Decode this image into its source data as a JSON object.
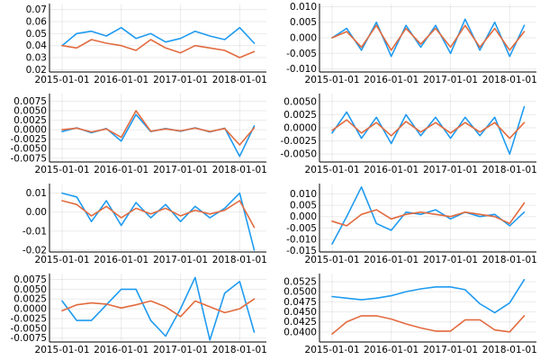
{
  "colors": {
    "series1": "#1f9bf0",
    "series2": "#e26b3f"
  },
  "chart_data": [
    {
      "type": "line",
      "panel": "top-left",
      "x_tick_labels": [
        "2015-01-01",
        "2016-01-01",
        "2017-01-01",
        "2018-01-01"
      ],
      "xlim": [
        "2014-10-15",
        "2018-06-15"
      ],
      "ylim": [
        0.018,
        0.075
      ],
      "y_ticks": [
        0.02,
        0.03,
        0.04,
        0.05,
        0.06,
        0.07
      ],
      "y_tick_labels": [
        "0.02",
        "0.03",
        "0.04",
        "0.05",
        "0.06",
        "0.07"
      ],
      "grid": true,
      "legend": "none",
      "x": [
        "2015-01-01",
        "2015-04-01",
        "2015-07-01",
        "2015-10-01",
        "2016-01-01",
        "2016-04-01",
        "2016-07-01",
        "2016-10-01",
        "2017-01-01",
        "2017-04-01",
        "2017-07-01",
        "2017-10-01",
        "2018-01-01",
        "2018-04-01"
      ],
      "series": [
        {
          "values": [
            0.04,
            0.05,
            0.052,
            0.048,
            0.055,
            0.046,
            0.05,
            0.043,
            0.046,
            0.052,
            0.048,
            0.045,
            0.055,
            0.042
          ]
        },
        {
          "values": [
            0.04,
            0.038,
            0.045,
            0.042,
            0.04,
            0.036,
            0.045,
            0.038,
            0.034,
            0.04,
            0.038,
            0.036,
            0.03,
            0.035
          ]
        }
      ]
    },
    {
      "type": "line",
      "panel": "top-right",
      "x_tick_labels": [
        "2015-01-01",
        "2016-01-01",
        "2017-01-01",
        "2018-01-01"
      ],
      "xlim": [
        "2014-10-15",
        "2018-06-15"
      ],
      "ylim": [
        -0.011,
        0.011
      ],
      "y_ticks": [
        -0.01,
        -0.005,
        0.0,
        0.005,
        0.01
      ],
      "y_tick_labels": [
        "-0.010",
        "-0.005",
        "0.000",
        "0.005",
        "0.010"
      ],
      "grid": true,
      "legend": "none",
      "x": [
        "2015-01-01",
        "2015-04-01",
        "2015-07-01",
        "2015-10-01",
        "2016-01-01",
        "2016-04-01",
        "2016-07-01",
        "2016-10-01",
        "2017-01-01",
        "2017-04-01",
        "2017-07-01",
        "2017-10-01",
        "2018-01-01",
        "2018-04-01"
      ],
      "series": [
        {
          "values": [
            0.0,
            0.003,
            -0.004,
            0.005,
            -0.006,
            0.004,
            -0.003,
            0.004,
            -0.005,
            0.006,
            -0.004,
            0.005,
            -0.006,
            0.004
          ]
        },
        {
          "values": [
            0.0,
            0.002,
            -0.003,
            0.004,
            -0.004,
            0.003,
            -0.002,
            0.003,
            -0.003,
            0.004,
            -0.003,
            0.003,
            -0.004,
            0.002
          ]
        }
      ]
    },
    {
      "type": "line",
      "panel": "second-left",
      "x_tick_labels": [
        "2015-01-01",
        "2016-01-01",
        "2017-01-01",
        "2018-01-01"
      ],
      "xlim": [
        "2014-10-15",
        "2018-06-15"
      ],
      "ylim": [
        -0.0085,
        0.0095
      ],
      "y_ticks": [
        -0.0075,
        -0.005,
        -0.0025,
        0.0,
        0.0025,
        0.005,
        0.0075
      ],
      "y_tick_labels": [
        "-0.0075",
        "-0.0050",
        "-0.0025",
        "0.0000",
        "0.0025",
        "0.0050",
        "0.0075"
      ],
      "grid": true,
      "legend": "none",
      "x": [
        "2015-01-01",
        "2015-04-01",
        "2015-07-01",
        "2015-10-01",
        "2016-01-01",
        "2016-04-01",
        "2016-07-01",
        "2016-10-01",
        "2017-01-01",
        "2017-04-01",
        "2017-07-01",
        "2017-10-01",
        "2018-01-01",
        "2018-04-01"
      ],
      "series": [
        {
          "values": [
            -0.0005,
            0.0005,
            -0.0008,
            0.0003,
            -0.003,
            0.004,
            -0.0005,
            0.0003,
            -0.0004,
            0.0005,
            -0.0006,
            0.0004,
            -0.007,
            0.001
          ]
        },
        {
          "values": [
            0.0,
            0.0004,
            -0.0006,
            0.0002,
            -0.002,
            0.005,
            -0.0004,
            0.0002,
            -0.0003,
            0.0004,
            -0.0005,
            0.0003,
            -0.004,
            0.0005
          ]
        }
      ]
    },
    {
      "type": "line",
      "panel": "second-right",
      "x_tick_labels": [
        "2015-01-01",
        "2016-01-01",
        "2017-01-01",
        "2018-01-01"
      ],
      "xlim": [
        "2014-10-15",
        "2018-06-15"
      ],
      "ylim": [
        -0.0065,
        0.0065
      ],
      "y_ticks": [
        -0.005,
        -0.0025,
        0.0,
        0.0025,
        0.005
      ],
      "y_tick_labels": [
        "-0.0050",
        "-0.0025",
        "0.0000",
        "0.0025",
        "0.0050"
      ],
      "grid": true,
      "legend": "none",
      "x": [
        "2015-01-01",
        "2015-04-01",
        "2015-07-01",
        "2015-10-01",
        "2016-01-01",
        "2016-04-01",
        "2016-07-01",
        "2016-10-01",
        "2017-01-01",
        "2017-04-01",
        "2017-07-01",
        "2017-10-01",
        "2018-01-01",
        "2018-04-01"
      ],
      "series": [
        {
          "values": [
            -0.001,
            0.003,
            -0.002,
            0.002,
            -0.003,
            0.0025,
            -0.0015,
            0.002,
            -0.002,
            0.002,
            -0.0015,
            0.002,
            -0.005,
            0.004
          ]
        },
        {
          "values": [
            -0.0005,
            0.0015,
            -0.001,
            0.001,
            -0.0015,
            0.0012,
            -0.0008,
            0.001,
            -0.001,
            0.001,
            -0.0008,
            0.001,
            -0.002,
            0.001
          ]
        }
      ]
    },
    {
      "type": "line",
      "panel": "third-left",
      "x_tick_labels": [
        "2015-01-01",
        "2016-01-01",
        "2017-01-01",
        "2018-01-01"
      ],
      "xlim": [
        "2014-10-15",
        "2018-06-15"
      ],
      "ylim": [
        -0.021,
        0.015
      ],
      "y_ticks": [
        -0.02,
        -0.01,
        0.0,
        0.01
      ],
      "y_tick_labels": [
        "-0.02",
        "-0.01",
        "0.00",
        "0.01"
      ],
      "grid": true,
      "legend": "none",
      "x": [
        "2015-01-01",
        "2015-04-01",
        "2015-07-01",
        "2015-10-01",
        "2016-01-01",
        "2016-04-01",
        "2016-07-01",
        "2016-10-01",
        "2017-01-01",
        "2017-04-01",
        "2017-07-01",
        "2017-10-01",
        "2018-01-01",
        "2018-04-01"
      ],
      "series": [
        {
          "values": [
            0.01,
            0.008,
            -0.005,
            0.006,
            -0.007,
            0.005,
            -0.003,
            0.004,
            -0.005,
            0.003,
            -0.003,
            0.002,
            0.01,
            -0.02
          ]
        },
        {
          "values": [
            0.006,
            0.004,
            -0.002,
            0.003,
            -0.003,
            0.002,
            -0.001,
            0.002,
            -0.002,
            0.001,
            -0.001,
            0.001,
            0.006,
            -0.008
          ]
        }
      ]
    },
    {
      "type": "line",
      "panel": "third-right",
      "x_tick_labels": [
        "2015-01-01",
        "2016-01-01",
        "2017-01-01",
        "2018-01-01"
      ],
      "xlim": [
        "2014-10-15",
        "2018-06-15"
      ],
      "ylim": [
        -0.0155,
        0.0145
      ],
      "y_ticks": [
        -0.015,
        -0.01,
        -0.005,
        0.0,
        0.005,
        0.01
      ],
      "y_tick_labels": [
        "-0.015",
        "-0.010",
        "-0.005",
        "0.000",
        "0.005",
        "0.010"
      ],
      "grid": true,
      "legend": "none",
      "x": [
        "2015-01-01",
        "2015-04-01",
        "2015-07-01",
        "2015-10-01",
        "2016-01-01",
        "2016-04-01",
        "2016-07-01",
        "2016-10-01",
        "2017-01-01",
        "2017-04-01",
        "2017-07-01",
        "2017-10-01",
        "2018-01-01",
        "2018-04-01"
      ],
      "series": [
        {
          "values": [
            -0.012,
            0.0,
            0.013,
            -0.003,
            -0.006,
            0.002,
            0.001,
            0.003,
            -0.001,
            0.002,
            0.0,
            0.001,
            -0.004,
            0.002
          ]
        },
        {
          "values": [
            -0.002,
            -0.004,
            0.001,
            0.003,
            -0.001,
            0.001,
            0.002,
            0.001,
            0.0,
            0.002,
            0.001,
            0.0,
            -0.003,
            0.006
          ]
        }
      ]
    },
    {
      "type": "line",
      "panel": "bottom-left",
      "x_tick_labels": [
        "2015-01-01",
        "2016-01-01",
        "2017-01-01",
        "2018-01-01"
      ],
      "xlim": [
        "2014-10-15",
        "2018-06-15"
      ],
      "ylim": [
        -0.0085,
        0.009
      ],
      "y_ticks": [
        -0.0075,
        -0.005,
        -0.0025,
        0.0,
        0.0025,
        0.005,
        0.0075
      ],
      "y_tick_labels": [
        "-0.0075",
        "-0.0050",
        "-0.0025",
        "0.0000",
        "0.0025",
        "0.0050",
        "0.0075"
      ],
      "grid": true,
      "legend": "none",
      "x": [
        "2015-01-01",
        "2015-04-01",
        "2015-07-01",
        "2015-10-01",
        "2016-01-01",
        "2016-04-01",
        "2016-07-01",
        "2016-10-01",
        "2017-01-01",
        "2017-04-01",
        "2017-07-01",
        "2017-10-01",
        "2018-01-01",
        "2018-04-01"
      ],
      "series": [
        {
          "values": [
            0.002,
            -0.003,
            -0.003,
            0.001,
            0.005,
            0.005,
            -0.003,
            -0.007,
            0.0,
            0.008,
            -0.008,
            0.004,
            0.007,
            -0.006
          ]
        },
        {
          "values": [
            -0.0005,
            0.001,
            0.0015,
            0.0012,
            0.0002,
            0.001,
            0.002,
            0.0005,
            -0.002,
            0.002,
            0.0005,
            -0.001,
            0.0,
            0.0025
          ]
        }
      ]
    },
    {
      "type": "line",
      "panel": "bottom-right",
      "x_tick_labels": [
        "2015-01-01",
        "2016-01-01",
        "2017-01-01",
        "2018-01-01"
      ],
      "xlim": [
        "2014-10-15",
        "2018-06-15"
      ],
      "ylim": [
        0.0375,
        0.0545
      ],
      "y_ticks": [
        0.04,
        0.0425,
        0.045,
        0.0475,
        0.05,
        0.0525
      ],
      "y_tick_labels": [
        "0.0400",
        "0.0425",
        "0.0450",
        "0.0475",
        "0.0500",
        "0.0525"
      ],
      "grid": true,
      "legend": "none",
      "x": [
        "2015-01-01",
        "2015-04-01",
        "2015-07-01",
        "2015-10-01",
        "2016-01-01",
        "2016-04-01",
        "2016-07-01",
        "2016-10-01",
        "2017-01-01",
        "2017-04-01",
        "2017-07-01",
        "2017-10-01",
        "2018-01-01",
        "2018-04-01"
      ],
      "series": [
        {
          "values": [
            0.0488,
            0.0484,
            0.048,
            0.0484,
            0.049,
            0.05,
            0.0507,
            0.0512,
            0.0512,
            0.0505,
            0.047,
            0.0448,
            0.0472,
            0.053
          ]
        },
        {
          "values": [
            0.0395,
            0.0425,
            0.044,
            0.044,
            0.0432,
            0.042,
            0.041,
            0.0402,
            0.0402,
            0.043,
            0.043,
            0.0405,
            0.04,
            0.044
          ]
        }
      ]
    }
  ]
}
